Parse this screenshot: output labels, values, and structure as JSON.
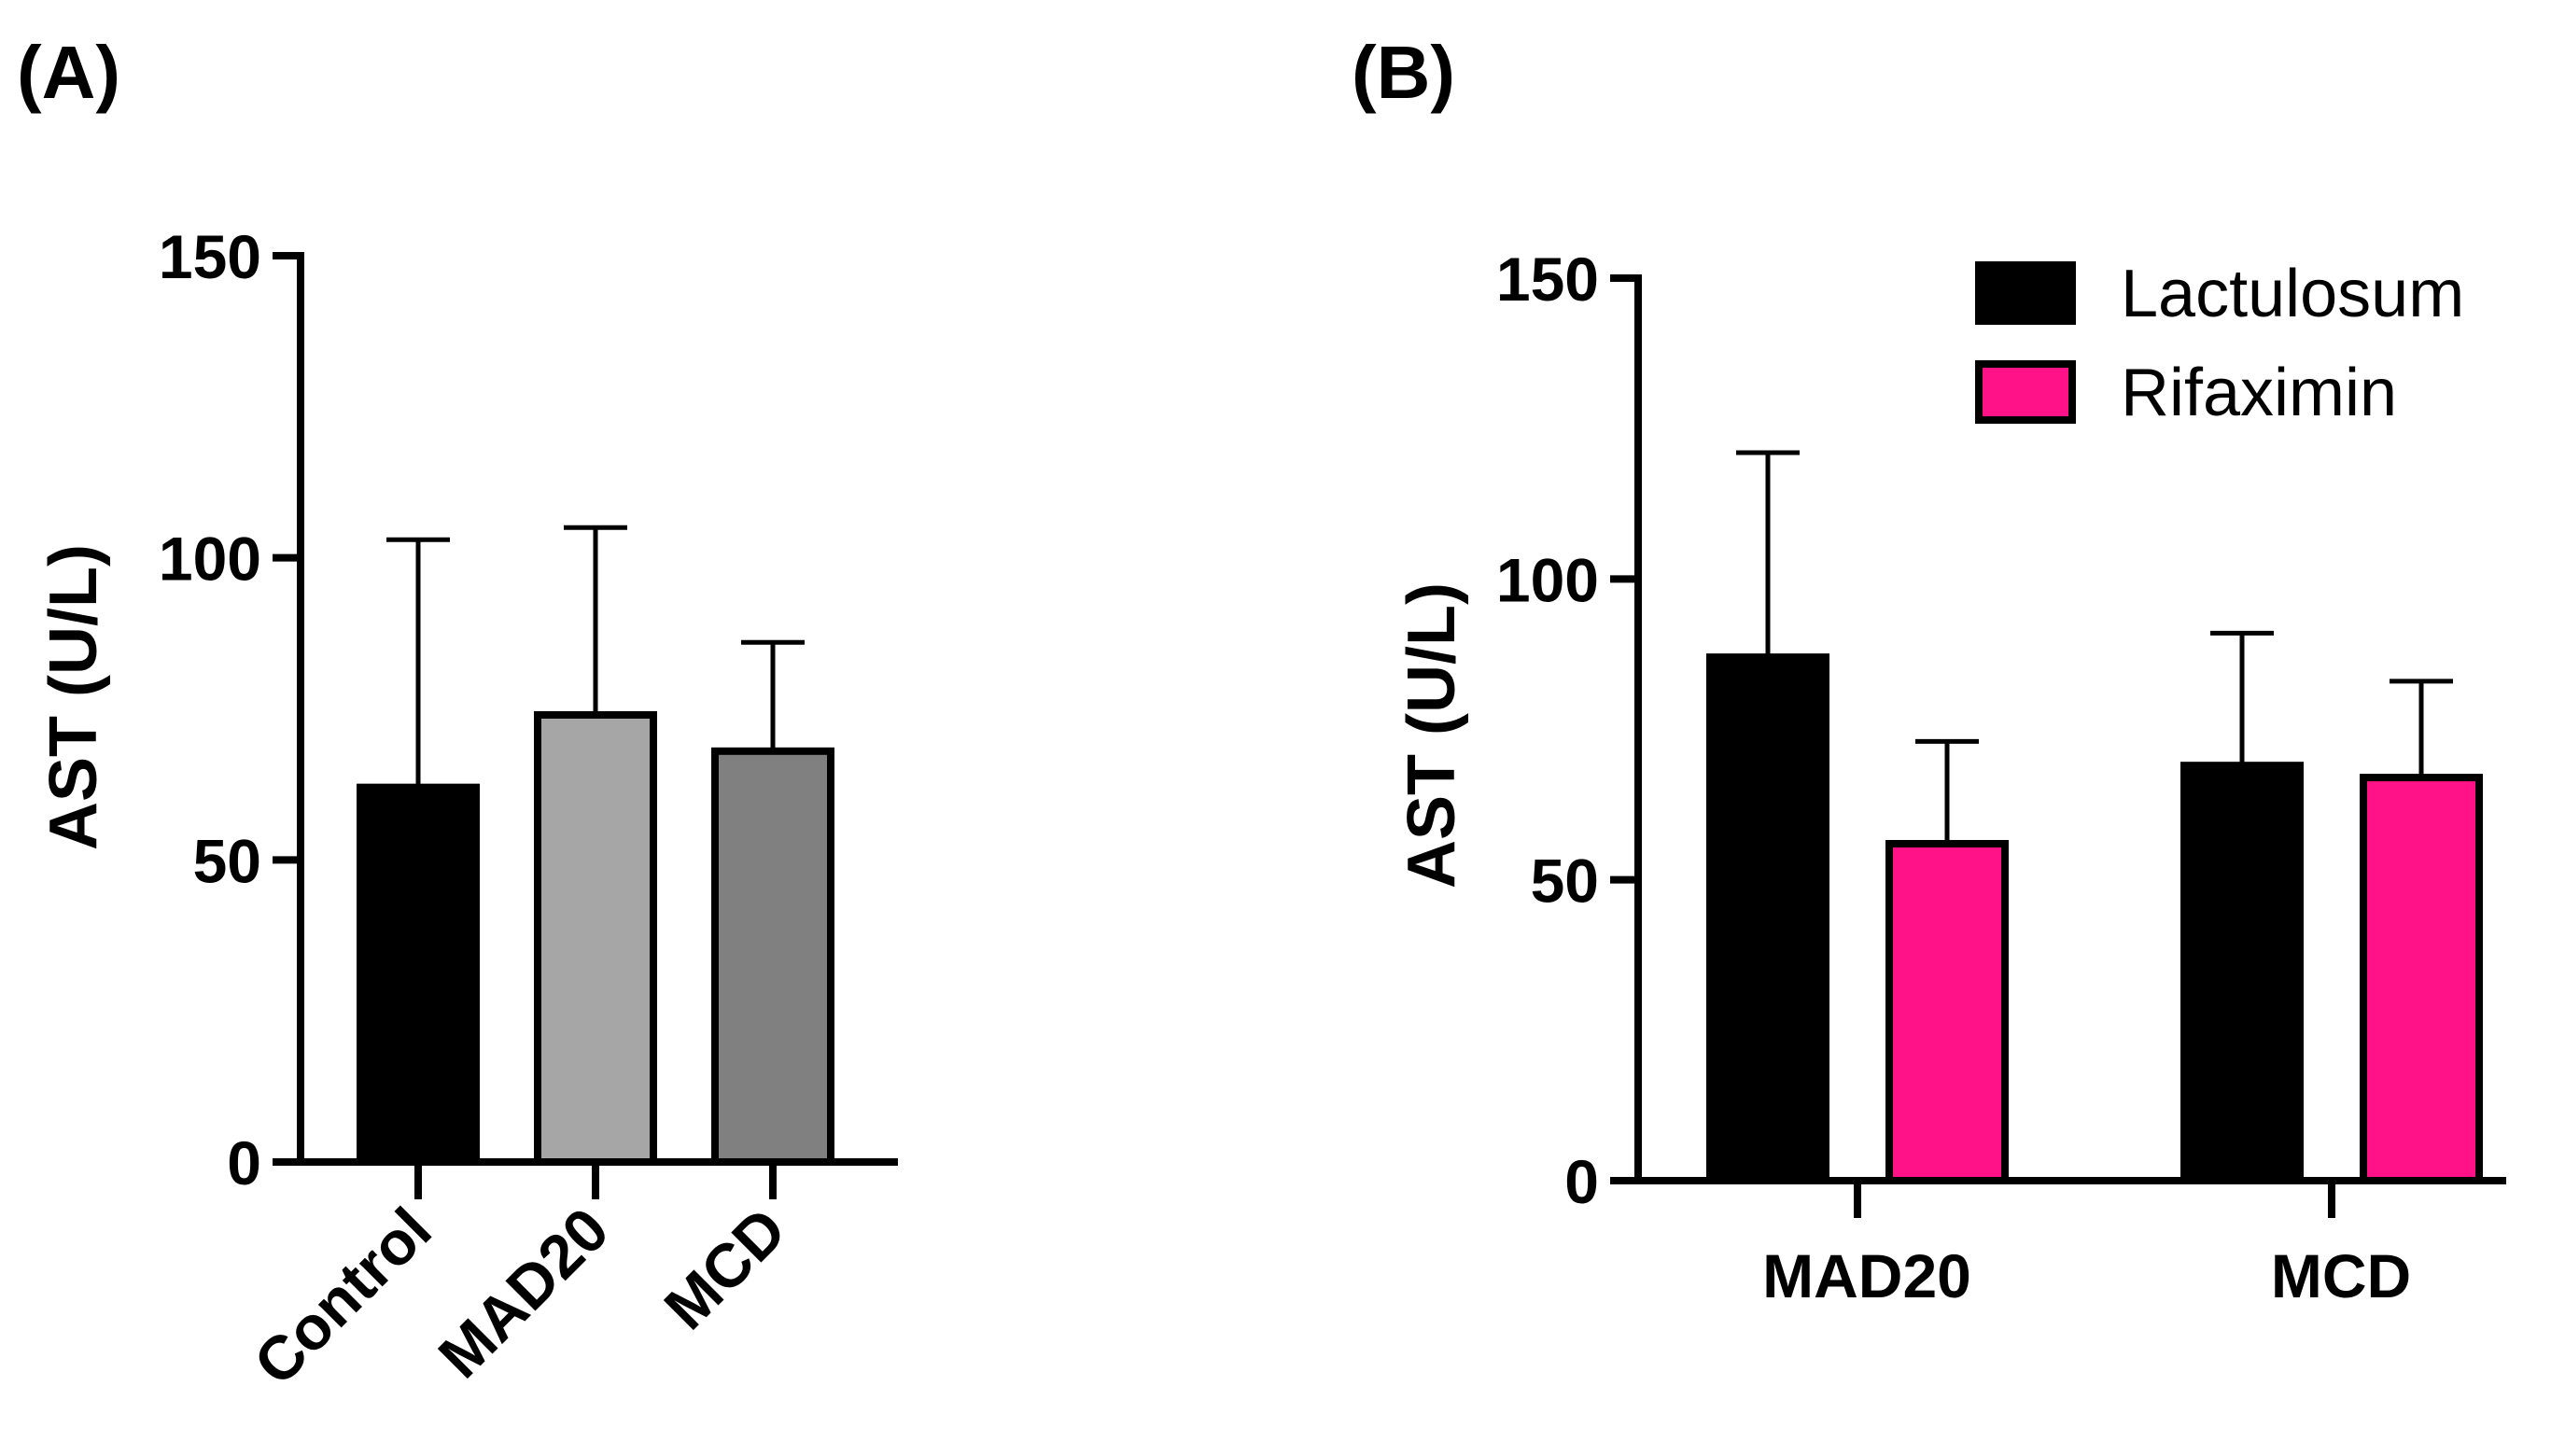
{
  "chart_data": [
    {
      "panel": "(A)",
      "type": "bar",
      "ylabel": "AST (U/L)",
      "ylim": [
        0,
        150
      ],
      "yticks": [
        0,
        50,
        100,
        150
      ],
      "categories": [
        "Control",
        "MAD20",
        "MCD"
      ],
      "values": [
        62,
        74,
        68
      ],
      "errors": [
        41,
        31,
        18
      ],
      "colors": [
        "#000000",
        "#a6a6a6",
        "#808080"
      ]
    },
    {
      "panel": "(B)",
      "type": "bar",
      "ylabel": "AST (U/L)",
      "ylim": [
        0,
        150
      ],
      "yticks": [
        0,
        50,
        100,
        150
      ],
      "categories": [
        "MAD20",
        "MCD"
      ],
      "series": [
        {
          "name": "Lactulosum",
          "values": [
            87,
            69
          ],
          "errors": [
            34,
            22
          ],
          "color": "#000000"
        },
        {
          "name": "Rifaximin",
          "values": [
            56,
            67
          ],
          "errors": [
            17,
            16
          ],
          "color": "#ff1287"
        }
      ],
      "legend": "top-right"
    }
  ]
}
